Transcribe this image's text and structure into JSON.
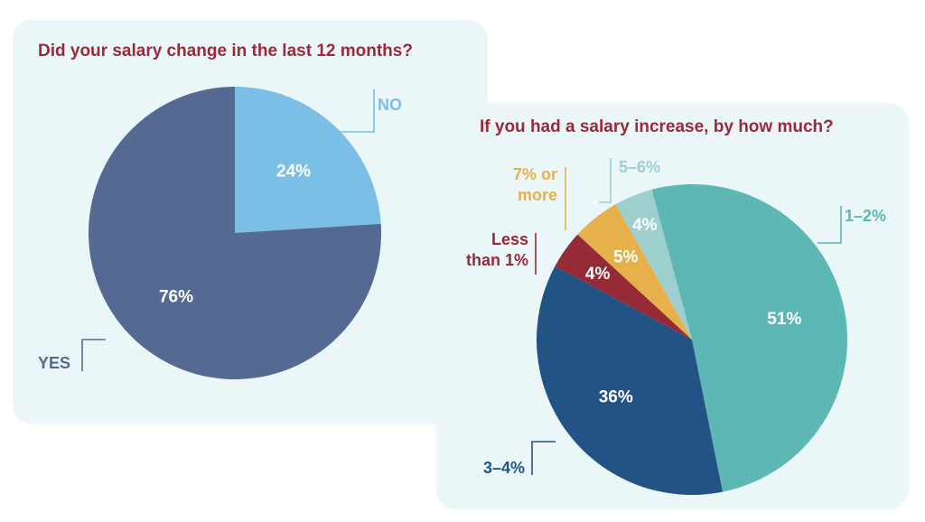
{
  "colors": {
    "card_bg": "#ebf6f8",
    "title": "#9a2a3a"
  },
  "chart_data": [
    {
      "type": "pie",
      "title": "Did your salary change in the last 12 months?",
      "slices": [
        {
          "label": "NO",
          "value": 24,
          "value_label": "24%",
          "color": "#7bbfe6"
        },
        {
          "label": "YES",
          "value": 76,
          "value_label": "76%",
          "color": "#546a93"
        }
      ]
    },
    {
      "type": "pie",
      "title": "If you had a salary increase, by how much?",
      "slices": [
        {
          "label": "1–2%",
          "value": 51,
          "value_label": "51%",
          "color": "#5db8b5"
        },
        {
          "label": "3–4%",
          "value": 36,
          "value_label": "36%",
          "color": "#235384"
        },
        {
          "label": "Less than 1%",
          "label_lines": [
            "Less",
            "than 1%"
          ],
          "value": 4,
          "value_label": "4%",
          "color": "#962a36"
        },
        {
          "label": "7% or more",
          "label_lines": [
            "7% or",
            "more"
          ],
          "value": 5,
          "value_label": "5%",
          "color": "#e6b04a"
        },
        {
          "label": "5–6%",
          "value": 4,
          "value_label": "4%",
          "color": "#9dcfce"
        }
      ]
    }
  ]
}
